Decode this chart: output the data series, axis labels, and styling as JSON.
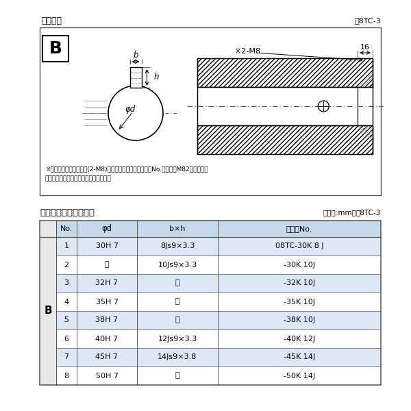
{
  "title_diagram": "軸穴形状",
  "fig_label": "囸8TC-3",
  "note1": "※セットボルト用タップ(2-M8)が必要な場合は右記コードNo.の末尾にM82を付ける。",
  "note2": "（セットボルトは付属されています。）",
  "table_title": "軸穴形状コード一覧表",
  "table_unit": "（単位:mm）",
  "table_label": "袆8TC-3",
  "header": [
    "No.",
    "φd",
    "b×h",
    "コードNo."
  ],
  "col_b_label": "B",
  "rows": [
    [
      "1",
      "30H 7",
      "8Js9×3.3",
      "08TC-30K 8 J"
    ],
    [
      "2",
      "〝",
      "10Js9×3.3",
      "-30K 10J"
    ],
    [
      "3",
      "32H 7",
      "〝",
      "-32K 10J"
    ],
    [
      "4",
      "35H 7",
      "〝",
      "-35K 10J"
    ],
    [
      "5",
      "38H 7",
      "〝",
      "-38K 10J"
    ],
    [
      "6",
      "40H 7",
      "12Js9×3.3",
      "-40K 12J"
    ],
    [
      "7",
      "45H 7",
      "14Js9×3.8",
      "-45K 14J"
    ],
    [
      "8",
      "50H 7",
      "〝",
      "-50K 14J"
    ]
  ],
  "ditto": "〝",
  "bg_light": "#dce8f5",
  "bg_white": "#ffffff",
  "bg_header": "#c5d9ea",
  "bg_b_col": "#e8e8e8",
  "border_col": "#777777",
  "text_col": "#111111"
}
